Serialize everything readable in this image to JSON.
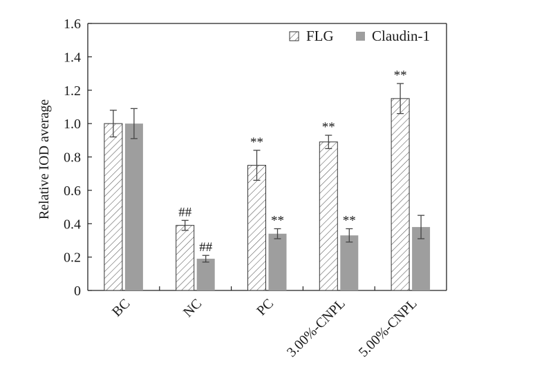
{
  "chart_data": {
    "type": "bar",
    "title": "",
    "xlabel": "",
    "ylabel": "Relative IOD average",
    "ylim": [
      0,
      1.6
    ],
    "yticks": [
      "0",
      "0.2",
      "0.4",
      "0.6",
      "0.8",
      "1.0",
      "1.2",
      "1.4",
      "1.6"
    ],
    "categories": [
      "BC",
      "NC",
      "PC",
      "3.00%-CNPL",
      "5.00%-CNPL"
    ],
    "series": [
      {
        "name": "FLG",
        "style": "hatched",
        "color": "#ffffff",
        "values": [
          1.0,
          0.39,
          0.75,
          0.89,
          1.15
        ],
        "errors": [
          0.08,
          0.03,
          0.09,
          0.04,
          0.09
        ],
        "annotations": [
          "",
          "##",
          "**",
          "**",
          "**"
        ]
      },
      {
        "name": "Claudin-1",
        "style": "solid",
        "color": "#9e9e9e",
        "values": [
          1.0,
          0.19,
          0.34,
          0.33,
          0.38
        ],
        "errors": [
          0.09,
          0.02,
          0.03,
          0.04,
          0.07
        ],
        "annotations": [
          "",
          "##",
          "**",
          "**",
          ""
        ]
      }
    ],
    "grid": false,
    "legend_position": "top-right"
  }
}
